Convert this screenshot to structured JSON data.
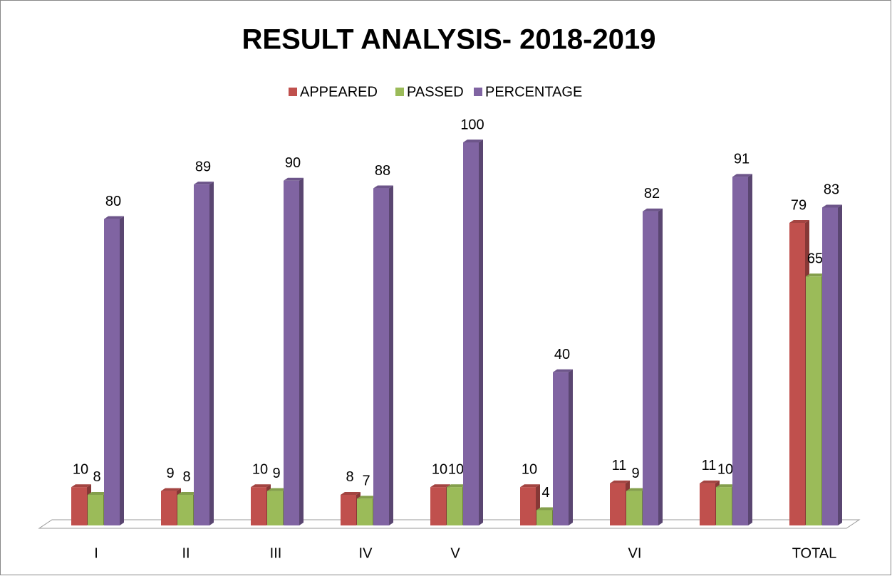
{
  "chart_data": {
    "type": "bar3d",
    "title": "RESULT ANALYSIS- 2018-2019",
    "categories": [
      "I",
      "II",
      "III",
      "IV",
      "V",
      null,
      "VI",
      null,
      "TOTAL"
    ],
    "series": [
      {
        "name": "APPEARED",
        "color": "#c0504d",
        "values": [
          10,
          9,
          10,
          8,
          10,
          10,
          11,
          11,
          79
        ]
      },
      {
        "name": "PASSED",
        "color": "#9bbb59",
        "values": [
          8,
          8,
          9,
          7,
          10,
          4,
          9,
          10,
          65
        ]
      },
      {
        "name": "PERCENTAGE",
        "color": "#8064a2",
        "values": [
          80,
          89,
          90,
          88,
          100,
          40,
          82,
          91,
          83
        ]
      }
    ],
    "ylim": [
      0,
      100
    ],
    "legend": "top"
  }
}
